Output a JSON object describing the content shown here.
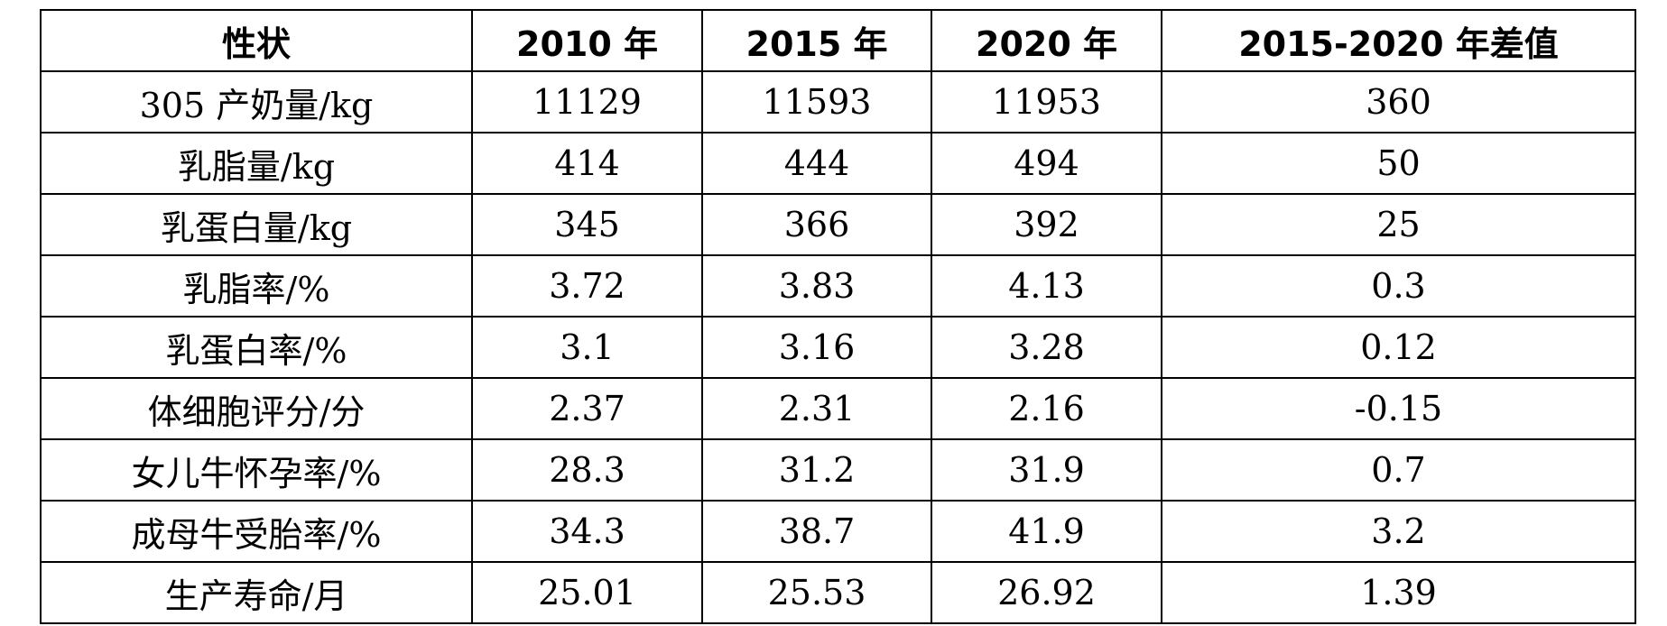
{
  "table": {
    "headers": [
      "性状",
      "2010 年",
      "2015 年",
      "2020 年",
      "2015-2020 年差值"
    ],
    "rows": [
      [
        "305 产奶量/kg",
        "11129",
        "11593",
        "11953",
        "360"
      ],
      [
        "乳脂量/kg",
        "414",
        "444",
        "494",
        "50"
      ],
      [
        "乳蛋白量/kg",
        "345",
        "366",
        "392",
        "25"
      ],
      [
        "乳脂率/%",
        "3.72",
        "3.83",
        "4.13",
        "0.3"
      ],
      [
        "乳蛋白率/%",
        "3.1",
        "3.16",
        "3.28",
        "0.12"
      ],
      [
        "体细胞评分/分",
        "2.37",
        "2.31",
        "2.16",
        "-0.15"
      ],
      [
        "女儿牛怀孕率/%",
        "28.3",
        "31.2",
        "31.9",
        "0.7"
      ],
      [
        "成母牛受胎率/%",
        "34.3",
        "38.7",
        "41.9",
        "3.2"
      ],
      [
        "生产寿命/月",
        "25.01",
        "25.53",
        "26.92",
        "1.39"
      ]
    ]
  }
}
